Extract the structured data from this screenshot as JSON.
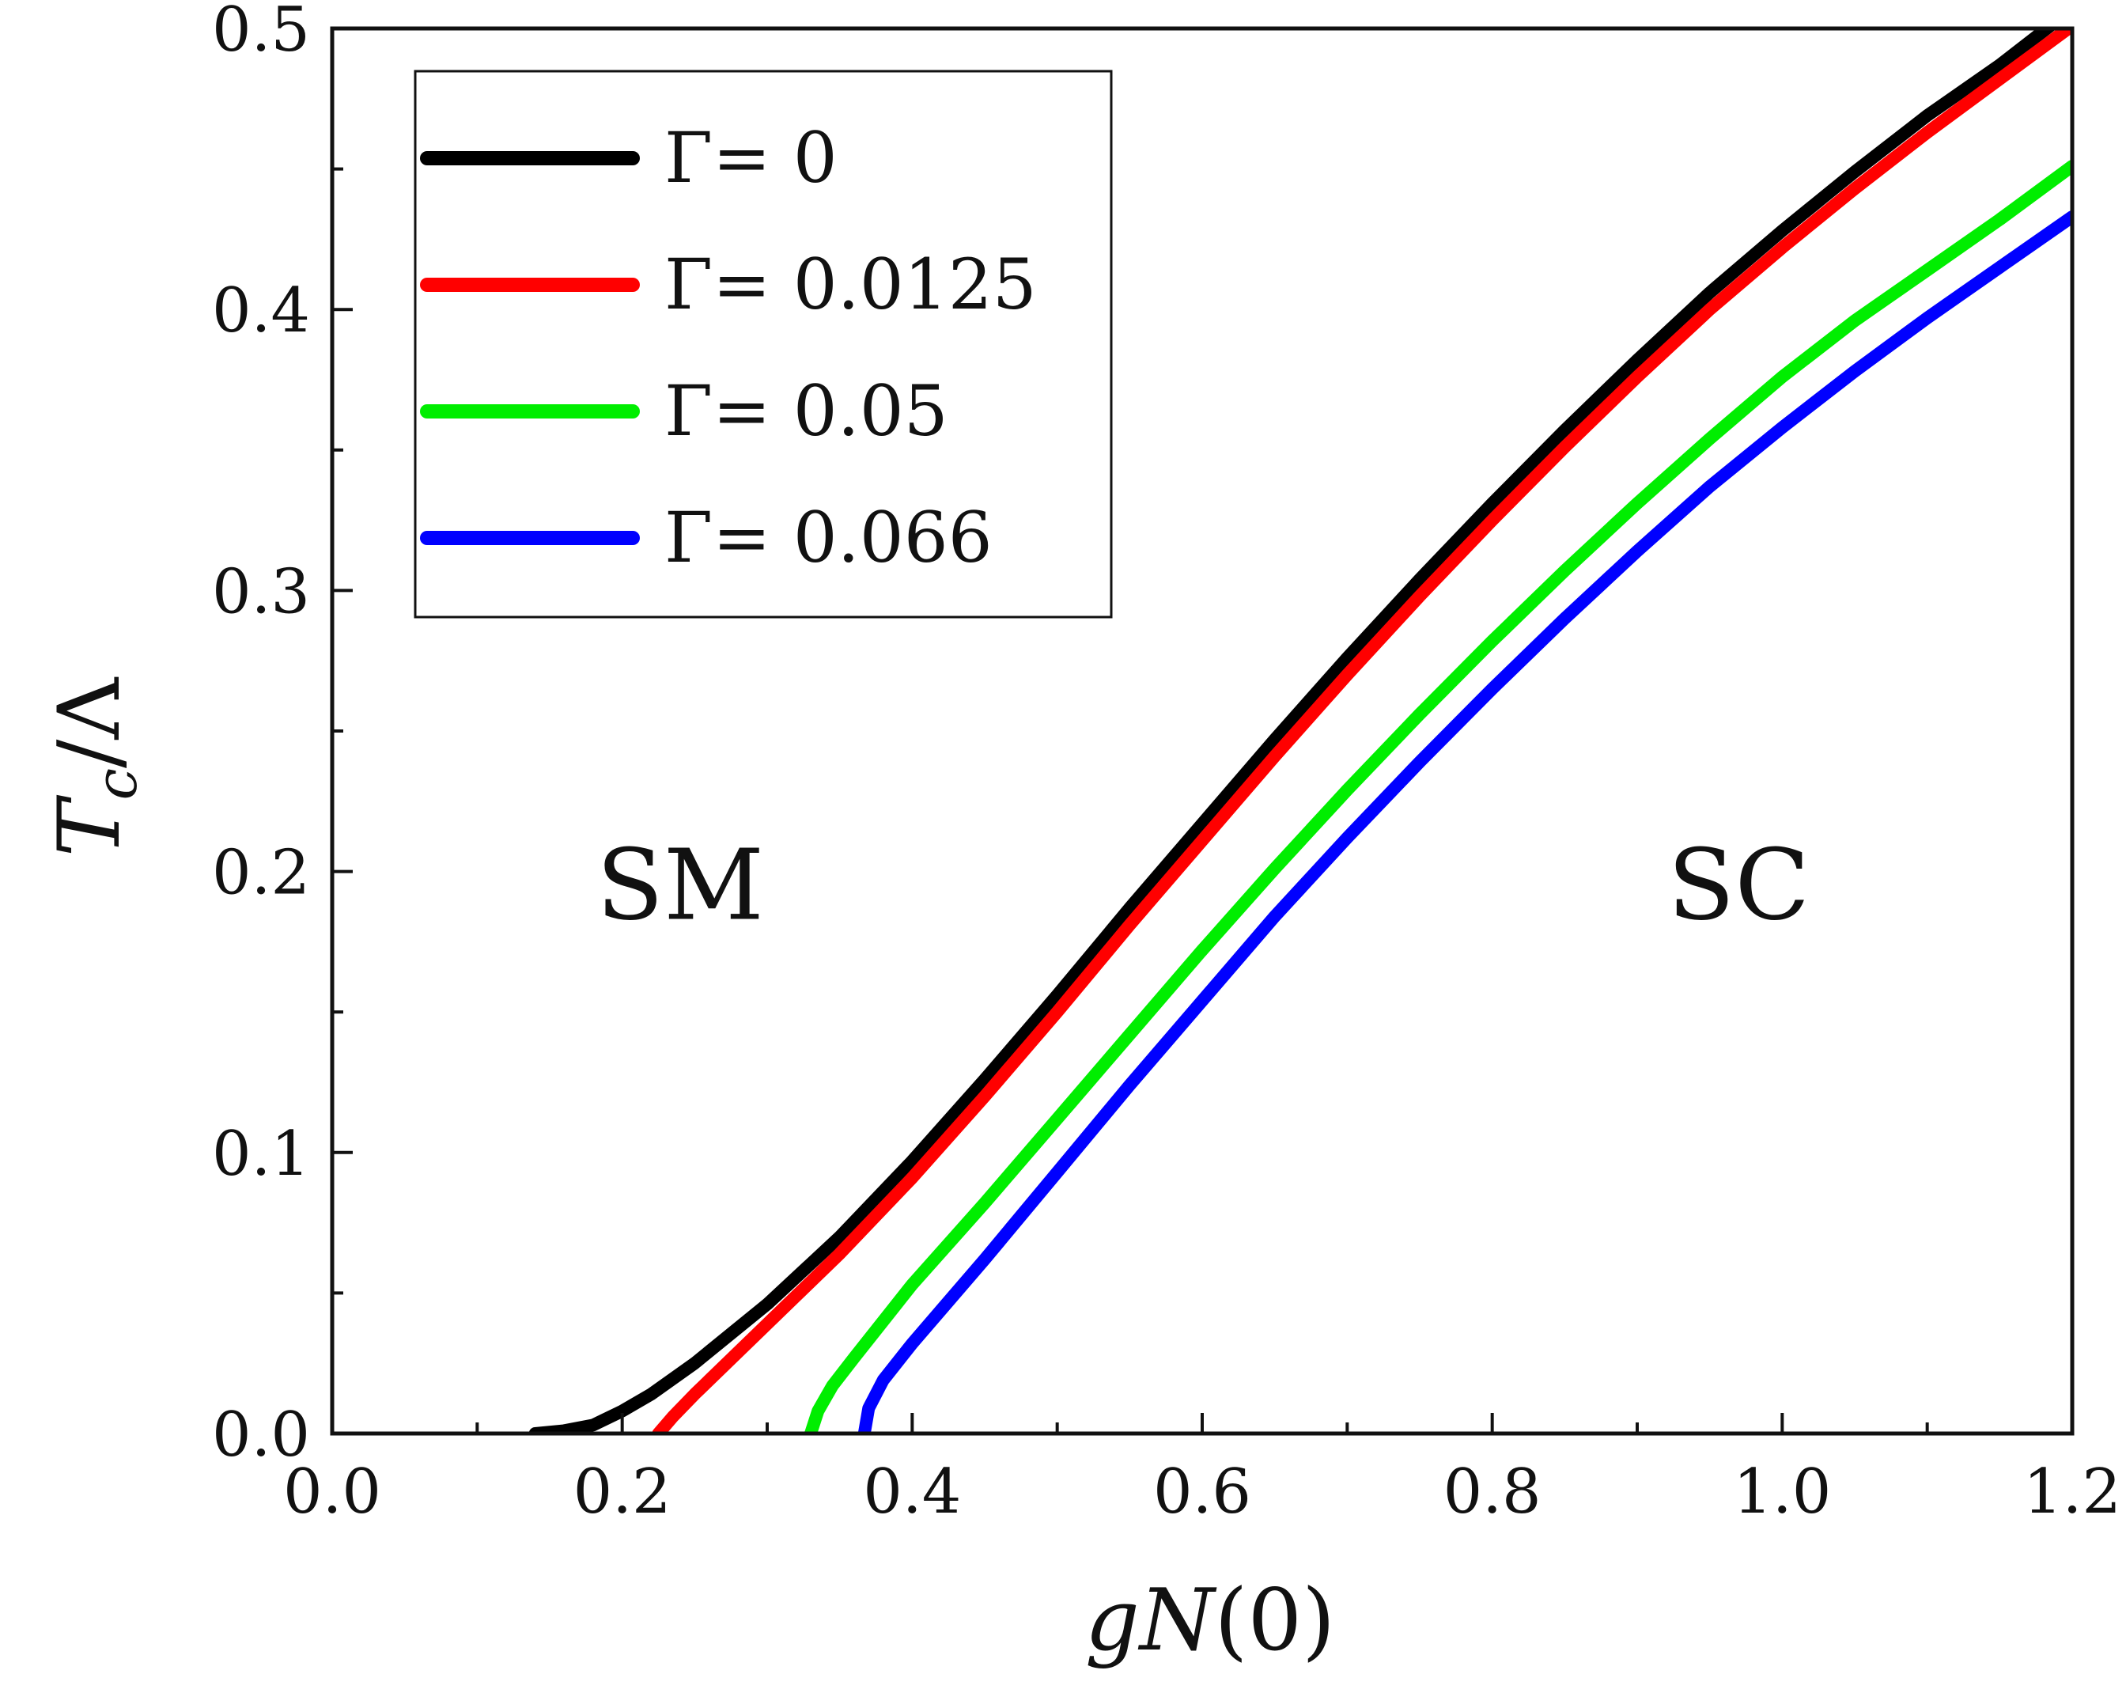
{
  "chart_data": {
    "type": "line",
    "xlabel": {
      "var1": "g",
      "var2": "N",
      "rest": "(0)"
    },
    "ylabel": {
      "var": "T",
      "sub": "c",
      "rest": "/Λ"
    },
    "xlim": [
      0.0,
      1.2
    ],
    "ylim": [
      0.0,
      0.5
    ],
    "xticks": [
      0.0,
      0.2,
      0.4,
      0.6,
      0.8,
      1.0,
      1.2
    ],
    "xtick_labels": [
      "0.0",
      "0.2",
      "0.4",
      "0.6",
      "0.8",
      "1.0",
      "1.2"
    ],
    "yticks": [
      0.0,
      0.1,
      0.2,
      0.3,
      0.4,
      0.5
    ],
    "ytick_labels": [
      "0.0",
      "0.1",
      "0.2",
      "0.3",
      "0.4",
      "0.5"
    ],
    "x_minor_step": 0.1,
    "y_minor_step": 0.05,
    "legend_position": "top-left",
    "annotations": [
      {
        "text": "SM",
        "x": 0.24,
        "y": 0.195
      },
      {
        "text": "SC",
        "x": 0.97,
        "y": 0.195
      }
    ],
    "series": [
      {
        "name": "Γ= 0",
        "color": "#000000",
        "points": [
          [
            0.14,
            0.0
          ],
          [
            0.16,
            0.001
          ],
          [
            0.18,
            0.003
          ],
          [
            0.2,
            0.008
          ],
          [
            0.22,
            0.014
          ],
          [
            0.25,
            0.025
          ],
          [
            0.3,
            0.046
          ],
          [
            0.35,
            0.07
          ],
          [
            0.4,
            0.097
          ],
          [
            0.45,
            0.126
          ],
          [
            0.5,
            0.156
          ],
          [
            0.55,
            0.187
          ],
          [
            0.6,
            0.217
          ],
          [
            0.65,
            0.247
          ],
          [
            0.7,
            0.276
          ],
          [
            0.75,
            0.304
          ],
          [
            0.8,
            0.331
          ],
          [
            0.85,
            0.357
          ],
          [
            0.9,
            0.382
          ],
          [
            0.95,
            0.406
          ],
          [
            1.0,
            0.428
          ],
          [
            1.05,
            0.449
          ],
          [
            1.1,
            0.469
          ],
          [
            1.15,
            0.487
          ],
          [
            1.2,
            0.507
          ]
        ]
      },
      {
        "name": "Γ= 0.0125",
        "color": "#ff0000",
        "points": [
          [
            0.225,
            0.0
          ],
          [
            0.235,
            0.006
          ],
          [
            0.25,
            0.014
          ],
          [
            0.3,
            0.039
          ],
          [
            0.35,
            0.064
          ],
          [
            0.4,
            0.091
          ],
          [
            0.45,
            0.12
          ],
          [
            0.5,
            0.15
          ],
          [
            0.55,
            0.181
          ],
          [
            0.6,
            0.211
          ],
          [
            0.65,
            0.241
          ],
          [
            0.7,
            0.27
          ],
          [
            0.75,
            0.298
          ],
          [
            0.8,
            0.325
          ],
          [
            0.85,
            0.351
          ],
          [
            0.9,
            0.376
          ],
          [
            0.95,
            0.4
          ],
          [
            1.0,
            0.422
          ],
          [
            1.05,
            0.443
          ],
          [
            1.1,
            0.463
          ],
          [
            1.15,
            0.482
          ],
          [
            1.2,
            0.501
          ]
        ]
      },
      {
        "name": "Γ= 0.05",
        "color": "#00ee00",
        "points": [
          [
            0.33,
            0.0
          ],
          [
            0.335,
            0.008
          ],
          [
            0.345,
            0.017
          ],
          [
            0.36,
            0.027
          ],
          [
            0.4,
            0.053
          ],
          [
            0.45,
            0.082
          ],
          [
            0.5,
            0.112
          ],
          [
            0.55,
            0.142
          ],
          [
            0.6,
            0.172
          ],
          [
            0.65,
            0.201
          ],
          [
            0.7,
            0.229
          ],
          [
            0.75,
            0.256
          ],
          [
            0.8,
            0.282
          ],
          [
            0.85,
            0.307
          ],
          [
            0.9,
            0.331
          ],
          [
            0.95,
            0.354
          ],
          [
            1.0,
            0.376
          ],
          [
            1.05,
            0.396
          ],
          [
            1.1,
            0.414
          ],
          [
            1.15,
            0.432
          ],
          [
            1.2,
            0.451
          ]
        ]
      },
      {
        "name": "Γ= 0.066",
        "color": "#0000ff",
        "points": [
          [
            0.367,
            0.0
          ],
          [
            0.37,
            0.009
          ],
          [
            0.38,
            0.019
          ],
          [
            0.4,
            0.032
          ],
          [
            0.45,
            0.062
          ],
          [
            0.5,
            0.093
          ],
          [
            0.55,
            0.124
          ],
          [
            0.6,
            0.154
          ],
          [
            0.65,
            0.184
          ],
          [
            0.7,
            0.212
          ],
          [
            0.75,
            0.239
          ],
          [
            0.8,
            0.265
          ],
          [
            0.85,
            0.29
          ],
          [
            0.9,
            0.314
          ],
          [
            0.95,
            0.337
          ],
          [
            1.0,
            0.358
          ],
          [
            1.05,
            0.378
          ],
          [
            1.1,
            0.397
          ],
          [
            1.15,
            0.415
          ],
          [
            1.2,
            0.433
          ]
        ]
      }
    ]
  }
}
